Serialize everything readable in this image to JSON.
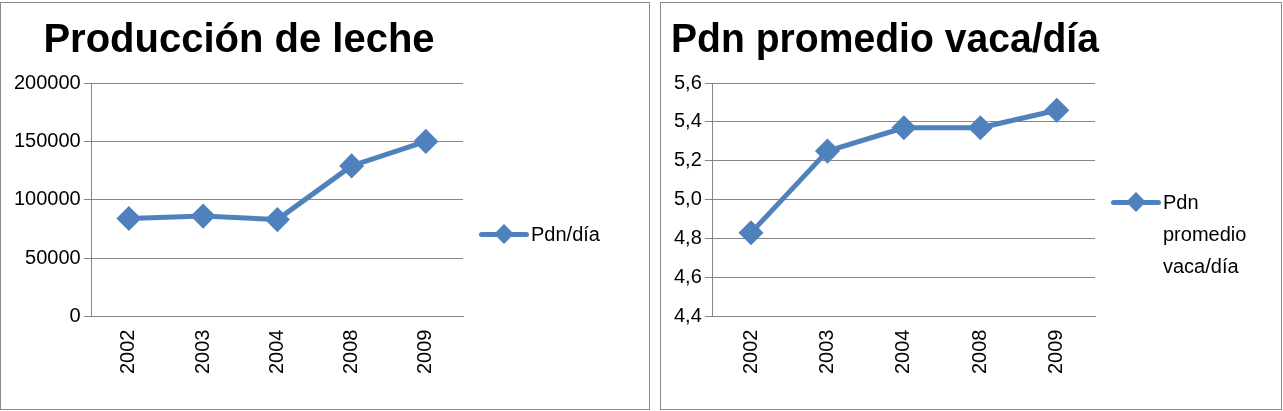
{
  "chart_data": [
    {
      "type": "line",
      "title": "Producción de leche",
      "categories": [
        "2002",
        "2003",
        "2004",
        "2008",
        "2009"
      ],
      "series": [
        {
          "name": "Pdn/día",
          "color": "#4f81bd",
          "values": [
            84000,
            86000,
            83000,
            129000,
            150000
          ]
        }
      ],
      "ylim": [
        0,
        200000
      ],
      "yticks": [
        0,
        50000,
        100000,
        150000,
        200000
      ],
      "grid": "y",
      "legend": "right",
      "marker": "diamond",
      "line_style": "solid"
    },
    {
      "type": "line",
      "title": "Pdn promedio vaca/día",
      "categories": [
        "2002",
        "2003",
        "2004",
        "2008",
        "2009"
      ],
      "series": [
        {
          "name": "Pdn promedio vaca/día",
          "color": "#4f81bd",
          "values": [
            4.83,
            5.25,
            5.37,
            5.37,
            5.46
          ]
        }
      ],
      "ylim": [
        4.4,
        5.6
      ],
      "yticks": [
        {
          "value": 4.4,
          "label": "4,4"
        },
        {
          "value": 4.6,
          "label": "4,6"
        },
        {
          "value": 4.8,
          "label": "4,8"
        },
        {
          "value": 5.0,
          "label": "5,0"
        },
        {
          "value": 5.2,
          "label": "5,2"
        },
        {
          "value": 5.4,
          "label": "5,4"
        },
        {
          "value": 5.6,
          "label": "5,6"
        }
      ],
      "grid": "y",
      "legend": "right",
      "marker": "diamond",
      "line_style": "solid"
    }
  ]
}
